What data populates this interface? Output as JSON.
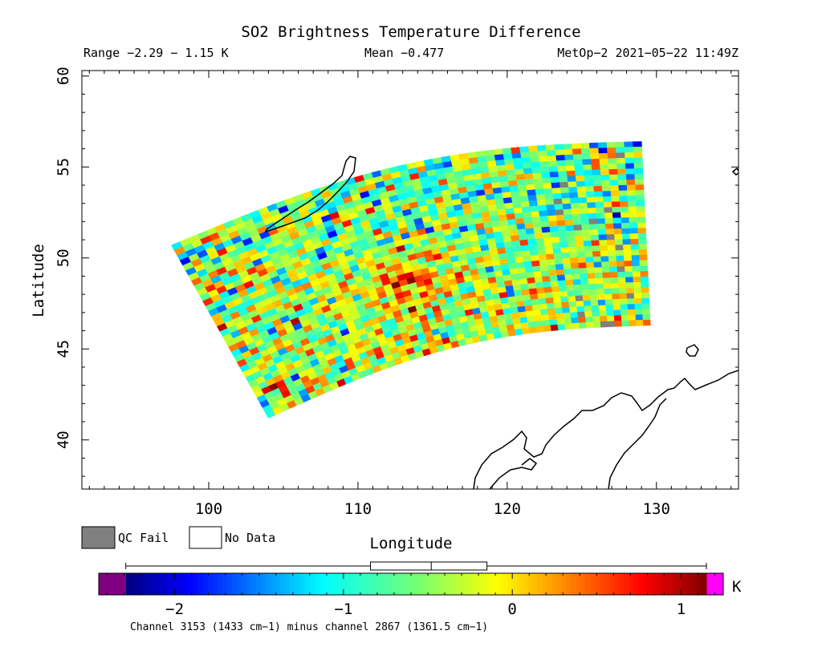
{
  "chart_data": {
    "type": "heatmap",
    "title": "SO2 Brightness Temperature Difference",
    "range_text": "Range −2.29 − 1.15 K",
    "mean_text": "Mean −0.477",
    "satellite_text": "MetOp−2 2021−05−22 11:49Z",
    "xlabel": "Longitude",
    "ylabel": "Latitude",
    "xlim": [
      91.5,
      135.5
    ],
    "ylim": [
      37.3,
      60.3
    ],
    "x_ticks": [
      100,
      110,
      120,
      130
    ],
    "x_tick_labels": [
      "100",
      "110",
      "120",
      "130"
    ],
    "y_ticks": [
      40,
      45,
      50,
      55,
      60
    ],
    "y_tick_labels": [
      "40",
      "45",
      "50",
      "55",
      "60"
    ],
    "swath_corners": {
      "top_left": [
        97.5,
        50.7
      ],
      "top_right": [
        129.0,
        56.4
      ],
      "bottom_right": [
        129.6,
        46.3
      ],
      "bottom_left": [
        104.0,
        41.2
      ]
    },
    "value_range": [
      -2.29,
      1.15
    ],
    "mean": -0.477,
    "hotspot": {
      "lon": 113.5,
      "lat": 48.5,
      "value": 0.85
    },
    "legend": {
      "qc_fail_label": "QC Fail",
      "no_data_label": "No Data",
      "qc_fail_color": "#808080",
      "no_data_color": "#ffffff"
    },
    "colorbar": {
      "min": -2.45,
      "max": 1.25,
      "ticks": [
        -2,
        -1,
        0,
        1
      ],
      "tick_labels": [
        "−2",
        "−1",
        "0",
        "1"
      ],
      "unit": "K",
      "under_color": "#800080",
      "over_color": "#ff00ff",
      "whisker_range": [
        -2.29,
        1.15
      ],
      "box_range": [
        -0.84,
        -0.15
      ],
      "median": -0.48,
      "caption": "Channel 3153 (1433 cm−1) minus channel 2867 (1361.5 cm−1)"
    }
  }
}
